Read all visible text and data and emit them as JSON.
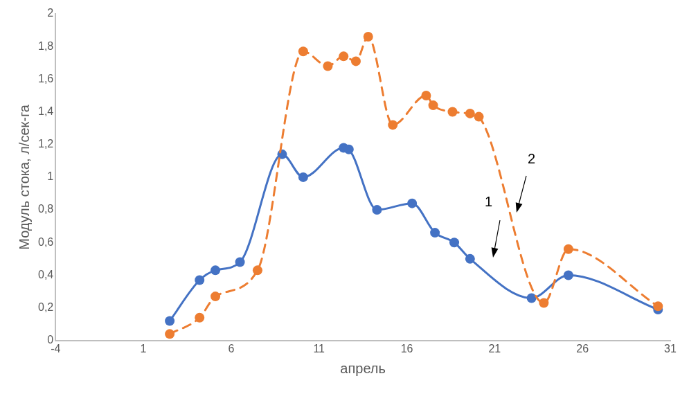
{
  "chart_data": {
    "type": "line",
    "xlabel": "апрель",
    "ylabel": "Модуль стока, л/сек-га",
    "xlim": [
      -4,
      31
    ],
    "xticks": [
      -4,
      1,
      6,
      11,
      16,
      21,
      26,
      31
    ],
    "ylim": [
      0,
      2
    ],
    "yticks": [
      0,
      {
        "value": 0.2,
        "label": "0,2"
      },
      {
        "value": 0.4,
        "label": "0,4"
      },
      {
        "value": 0.6,
        "label": "0,6"
      },
      {
        "value": 0.8,
        "label": "0,8"
      },
      1,
      {
        "value": 1.2,
        "label": "1,2"
      },
      {
        "value": 1.4,
        "label": "1,4"
      },
      {
        "value": 1.6,
        "label": "1,6"
      },
      {
        "value": 1.8,
        "label": "1,8"
      },
      2
    ],
    "grid": false,
    "legend": false,
    "marker": "circle",
    "series": [
      {
        "color": "#4472c4",
        "line_style": "solid",
        "x": [
          2.5,
          4.2,
          5.1,
          6.5,
          8.9,
          10.1,
          12.4,
          12.7,
          14.3,
          16.3,
          17.6,
          18.7,
          19.6,
          23.1,
          25.2,
          30.3
        ],
        "values": [
          0.12,
          0.37,
          0.43,
          0.48,
          1.14,
          1.0,
          1.18,
          1.17,
          0.8,
          0.84,
          0.66,
          0.6,
          0.5,
          0.26,
          0.4,
          0.19
        ]
      },
      {
        "color": "#ed7d31",
        "line_style": "dashed",
        "x": [
          2.5,
          4.2,
          5.1,
          7.5,
          10.1,
          11.5,
          12.4,
          13.1,
          13.8,
          15.2,
          17.1,
          17.5,
          18.6,
          19.6,
          20.1,
          23.8,
          25.2,
          30.3
        ],
        "values": [
          0.04,
          0.14,
          0.27,
          0.43,
          1.77,
          1.68,
          1.74,
          1.71,
          1.86,
          1.32,
          1.5,
          1.44,
          1.4,
          1.39,
          1.37,
          0.23,
          0.56,
          0.21
        ]
      }
    ],
    "annotations": [
      "1",
      "2"
    ]
  }
}
